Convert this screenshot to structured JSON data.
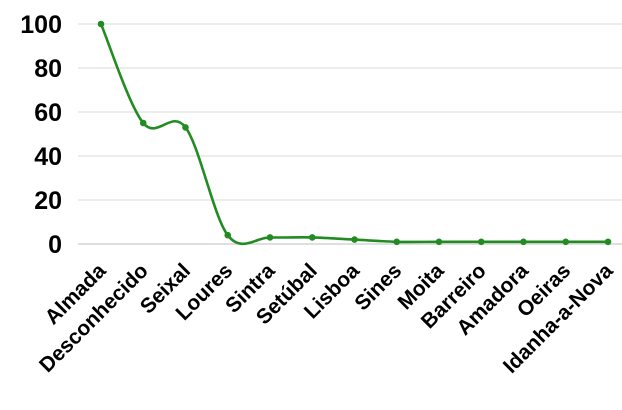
{
  "chart_data": {
    "type": "line",
    "title": "",
    "xlabel": "",
    "ylabel": "",
    "ylim": [
      0,
      100
    ],
    "yticks": [
      0,
      20,
      40,
      60,
      80,
      100
    ],
    "grid": true,
    "smooth": true,
    "color": "#228B22",
    "categories": [
      "Almada",
      "Desconhecido",
      "Seixal",
      "Loures",
      "Sintra",
      "Setúbal",
      "Lisboa",
      "Sines",
      "Moita",
      "Barreiro",
      "Amadora",
      "Oeiras",
      "Idanha-a-Nova"
    ],
    "values": [
      100,
      55,
      53,
      4,
      3,
      3,
      2,
      1,
      1,
      1,
      1,
      1,
      1
    ]
  }
}
